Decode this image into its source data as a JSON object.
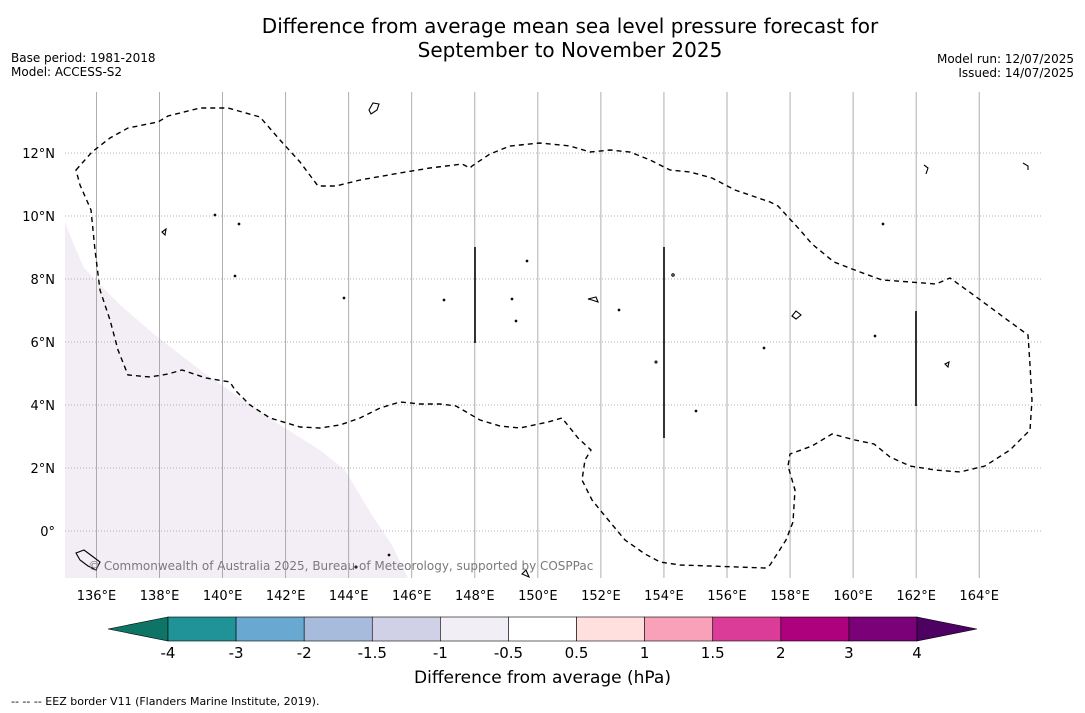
{
  "title_line1": "Difference from average mean sea level pressure forecast for",
  "title_line2": "September to November 2025",
  "left_meta": {
    "base_period": "Base period: 1981-2018",
    "model": "Model: ACCESS-S2"
  },
  "right_meta": {
    "model_run": "Model run: 12/07/2025",
    "issued": "Issued: 14/07/2025"
  },
  "map": {
    "lon_labels": [
      "136°E",
      "138°E",
      "140°E",
      "142°E",
      "144°E",
      "146°E",
      "148°E",
      "150°E",
      "152°E",
      "154°E",
      "156°E",
      "158°E",
      "160°E",
      "162°E",
      "164°E"
    ],
    "lat_labels": [
      "12°N",
      "10°N",
      "8°N",
      "6°N",
      "4°N",
      "2°N",
      "0°"
    ],
    "copyright": "© Commonwealth of Australia 2025, Bureau of Meteorology, supported by COSPPac",
    "shading_color": "#f3eef5"
  },
  "colorbar": {
    "ticks": [
      "-4",
      "-3",
      "-2",
      "-1.5",
      "-1",
      "-0.5",
      "0.5",
      "1",
      "1.5",
      "2",
      "3",
      "4"
    ],
    "colors": [
      "#0e7566",
      "#1f9398",
      "#69a9d1",
      "#a7bbdc",
      "#d0d1e6",
      "#f1eef6",
      "#ffffff",
      "#ffe0de",
      "#f9a1b8",
      "#db3c97",
      "#ae017e",
      "#7a0177",
      "#4d0163"
    ],
    "label": "Difference from average (hPa)"
  },
  "footnote": "-- -- -- EEZ border V11 (Flanders Marine Institute, 2019)."
}
